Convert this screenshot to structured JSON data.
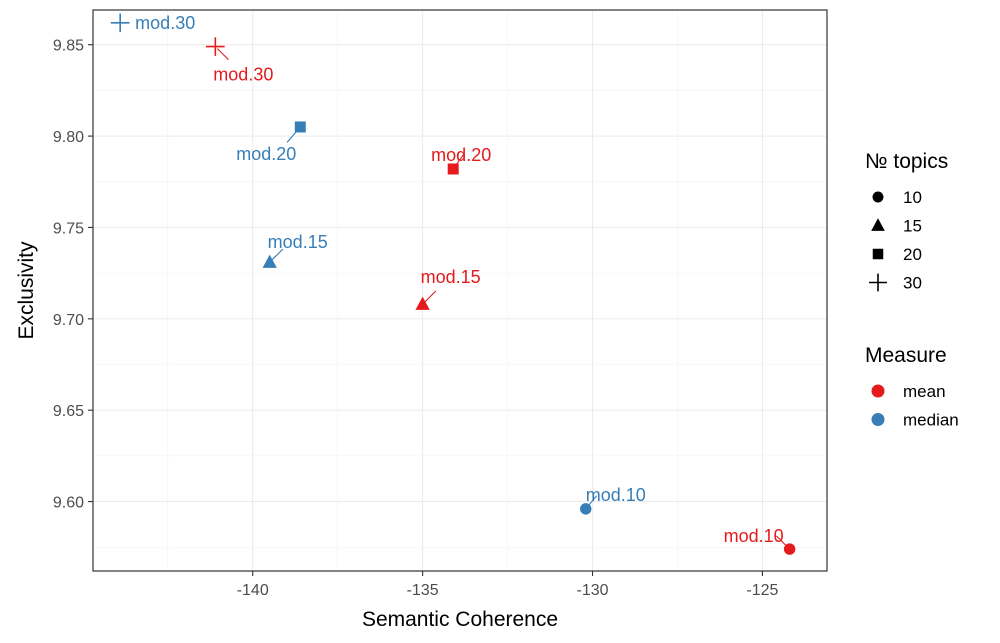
{
  "chart_data": {
    "type": "scatter",
    "title": "",
    "xlabel": "Semantic Coherence",
    "ylabel": "Exclusivity",
    "xlim": [
      -144.7,
      -123.1
    ],
    "ylim": [
      9.562,
      9.869
    ],
    "xticks": [
      -140,
      -135,
      -130,
      -125
    ],
    "yticks": [
      9.6,
      9.65,
      9.7,
      9.75,
      9.8,
      9.85
    ],
    "xtick_labels": [
      "-140",
      "-135",
      "-130",
      "-125"
    ],
    "ytick_labels": [
      "9.60",
      "9.65",
      "9.70",
      "9.75",
      "9.80",
      "9.85"
    ],
    "grid": true,
    "legend_position": "right",
    "legends": [
      {
        "title": "№ topics",
        "items": [
          {
            "label": "10",
            "shape": "circle"
          },
          {
            "label": "15",
            "shape": "triangle"
          },
          {
            "label": "20",
            "shape": "square"
          },
          {
            "label": "30",
            "shape": "plus"
          }
        ]
      },
      {
        "title": "Measure",
        "items": [
          {
            "label": "mean",
            "color": "#e41a1c"
          },
          {
            "label": "median",
            "color": "#377eb8"
          }
        ]
      }
    ],
    "series": [
      {
        "name": "mean",
        "color": "#e41a1c",
        "points": [
          {
            "x": -124.2,
            "y": 9.574,
            "topics": "10",
            "shape": "circle",
            "label": "mod.10"
          },
          {
            "x": -135.0,
            "y": 9.708,
            "topics": "15",
            "shape": "triangle",
            "label": "mod.15"
          },
          {
            "x": -134.1,
            "y": 9.782,
            "topics": "20",
            "shape": "square",
            "label": "mod.20"
          },
          {
            "x": -141.1,
            "y": 9.849,
            "topics": "30",
            "shape": "plus",
            "label": "mod.30"
          }
        ]
      },
      {
        "name": "median",
        "color": "#377eb8",
        "points": [
          {
            "x": -130.2,
            "y": 9.596,
            "topics": "10",
            "shape": "circle",
            "label": "mod.10"
          },
          {
            "x": -139.5,
            "y": 9.731,
            "topics": "15",
            "shape": "triangle",
            "label": "mod.15"
          },
          {
            "x": -138.6,
            "y": 9.805,
            "topics": "20",
            "shape": "square",
            "label": "mod.20"
          },
          {
            "x": -143.9,
            "y": 9.862,
            "topics": "30",
            "shape": "plus",
            "label": "mod.30"
          }
        ]
      }
    ]
  }
}
